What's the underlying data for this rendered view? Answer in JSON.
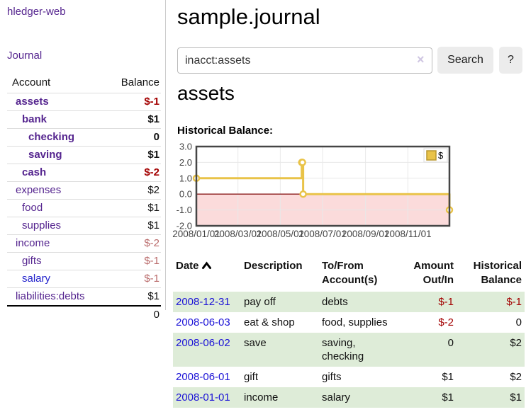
{
  "sidebar": {
    "brand": "hledger-web",
    "journal_link": "Journal",
    "accounts_header": {
      "account": "Account",
      "balance": "Balance"
    },
    "accounts": [
      {
        "name": "assets",
        "balance": "$-1",
        "level": 1,
        "bold": true,
        "balance_tone": "neg-strong",
        "link_tone": "purple"
      },
      {
        "name": "bank",
        "balance": "$1",
        "level": 2,
        "bold": true,
        "balance_tone": "normal",
        "link_tone": "purple"
      },
      {
        "name": "checking",
        "balance": "0",
        "level": 3,
        "bold": true,
        "balance_tone": "normal",
        "link_tone": "purple"
      },
      {
        "name": "saving",
        "balance": "$1",
        "level": 3,
        "bold": true,
        "balance_tone": "normal",
        "link_tone": "purple"
      },
      {
        "name": "cash",
        "balance": "$-2",
        "level": 2,
        "bold": true,
        "balance_tone": "neg-strong",
        "link_tone": "purple"
      },
      {
        "name": "expenses",
        "balance": "$2",
        "level": 1,
        "bold": false,
        "balance_tone": "normal",
        "link_tone": "purple"
      },
      {
        "name": "food",
        "balance": "$1",
        "level": 2,
        "bold": false,
        "balance_tone": "normal",
        "link_tone": "purple"
      },
      {
        "name": "supplies",
        "balance": "$1",
        "level": 2,
        "bold": false,
        "balance_tone": "normal",
        "link_tone": "purple"
      },
      {
        "name": "income",
        "balance": "$-2",
        "level": 1,
        "bold": false,
        "balance_tone": "neg-soft",
        "link_tone": "purple"
      },
      {
        "name": "gifts",
        "balance": "$-1",
        "level": 2,
        "bold": false,
        "balance_tone": "neg-soft",
        "link_tone": "purple"
      },
      {
        "name": "salary",
        "balance": "$-1",
        "level": 2,
        "bold": false,
        "balance_tone": "neg-soft",
        "link_tone": "blue"
      },
      {
        "name": "liabilities:debts",
        "balance": "$1",
        "level": 1,
        "bold": false,
        "balance_tone": "normal",
        "link_tone": "purple"
      }
    ],
    "total": "0"
  },
  "header": {
    "title": "sample.journal"
  },
  "search": {
    "query": "inacct:assets",
    "clear_icon": "×",
    "button_label": "Search",
    "help_label": "?"
  },
  "account_page": {
    "heading": "assets",
    "chart_label": "Historical Balance:"
  },
  "chart_data": {
    "type": "line",
    "title": "Historical Balance",
    "step": true,
    "legend": {
      "label": "$",
      "position": "top-right"
    },
    "series": [
      {
        "name": "$",
        "color": "#e9c348",
        "points": [
          {
            "x": "2008-01-01",
            "y": 1
          },
          {
            "x": "2008-06-01",
            "y": 2
          },
          {
            "x": "2008-06-02",
            "y": 2
          },
          {
            "x": "2008-06-03",
            "y": 0
          },
          {
            "x": "2008-12-31",
            "y": -1
          }
        ]
      }
    ],
    "x_ticks": [
      {
        "label": "2008/01/01",
        "date": "2008-01-01"
      },
      {
        "label": "2008/03/01",
        "date": "2008-03-01"
      },
      {
        "label": "2008/05/01",
        "date": "2008-05-01"
      },
      {
        "label": "2008/07/01",
        "date": "2008-07-01"
      },
      {
        "label": "2008/09/01",
        "date": "2008-09-01"
      },
      {
        "label": "2008/11/01",
        "date": "2008-11-01"
      }
    ],
    "y_ticks": [
      {
        "label": "3.0",
        "value": 3
      },
      {
        "label": "2.0",
        "value": 2
      },
      {
        "label": "1.0",
        "value": 1
      },
      {
        "label": "0.0",
        "value": 0
      },
      {
        "label": "-1.0",
        "value": -1
      },
      {
        "label": "-2.0",
        "value": -2
      }
    ],
    "xlim": [
      "2008-01-01",
      "2008-12-31"
    ],
    "ylim": [
      -2,
      3
    ],
    "grid": true,
    "negative_region_fill": "#fbdbdb",
    "zero_line_color": "#8b1a1a",
    "border_color": "#454545",
    "grid_color": "#e8e8e8",
    "tick_label_color": "#444444"
  },
  "transactions": {
    "columns": [
      {
        "l1": "Date",
        "l2": "",
        "align": "left",
        "sorted": "asc"
      },
      {
        "l1": "Description",
        "l2": "",
        "align": "left"
      },
      {
        "l1": "To/From",
        "l2": "Account(s)",
        "align": "left"
      },
      {
        "l1": "Amount",
        "l2": "Out/In",
        "align": "right"
      },
      {
        "l1": "Historical",
        "l2": "Balance",
        "align": "right"
      }
    ],
    "rows": [
      {
        "date": "2008-12-31",
        "description": "pay off",
        "accounts": "debts",
        "amount": "$-1",
        "amount_tone": "neg-strong",
        "balance": "$-1",
        "balance_tone": "neg-strong"
      },
      {
        "date": "2008-06-03",
        "description": "eat & shop",
        "accounts": "food, supplies",
        "amount": "$-2",
        "amount_tone": "neg-strong",
        "balance": "0",
        "balance_tone": "normal"
      },
      {
        "date": "2008-06-02",
        "description": "save",
        "accounts": "saving,\nchecking",
        "amount": "0",
        "amount_tone": "normal",
        "balance": "$2",
        "balance_tone": "normal"
      },
      {
        "date": "2008-06-01",
        "description": "gift",
        "accounts": "gifts",
        "amount": "$1",
        "amount_tone": "normal",
        "balance": "$2",
        "balance_tone": "normal"
      },
      {
        "date": "2008-01-01",
        "description": "income",
        "accounts": "salary",
        "amount": "$1",
        "amount_tone": "normal",
        "balance": "$1",
        "balance_tone": "normal"
      }
    ]
  }
}
